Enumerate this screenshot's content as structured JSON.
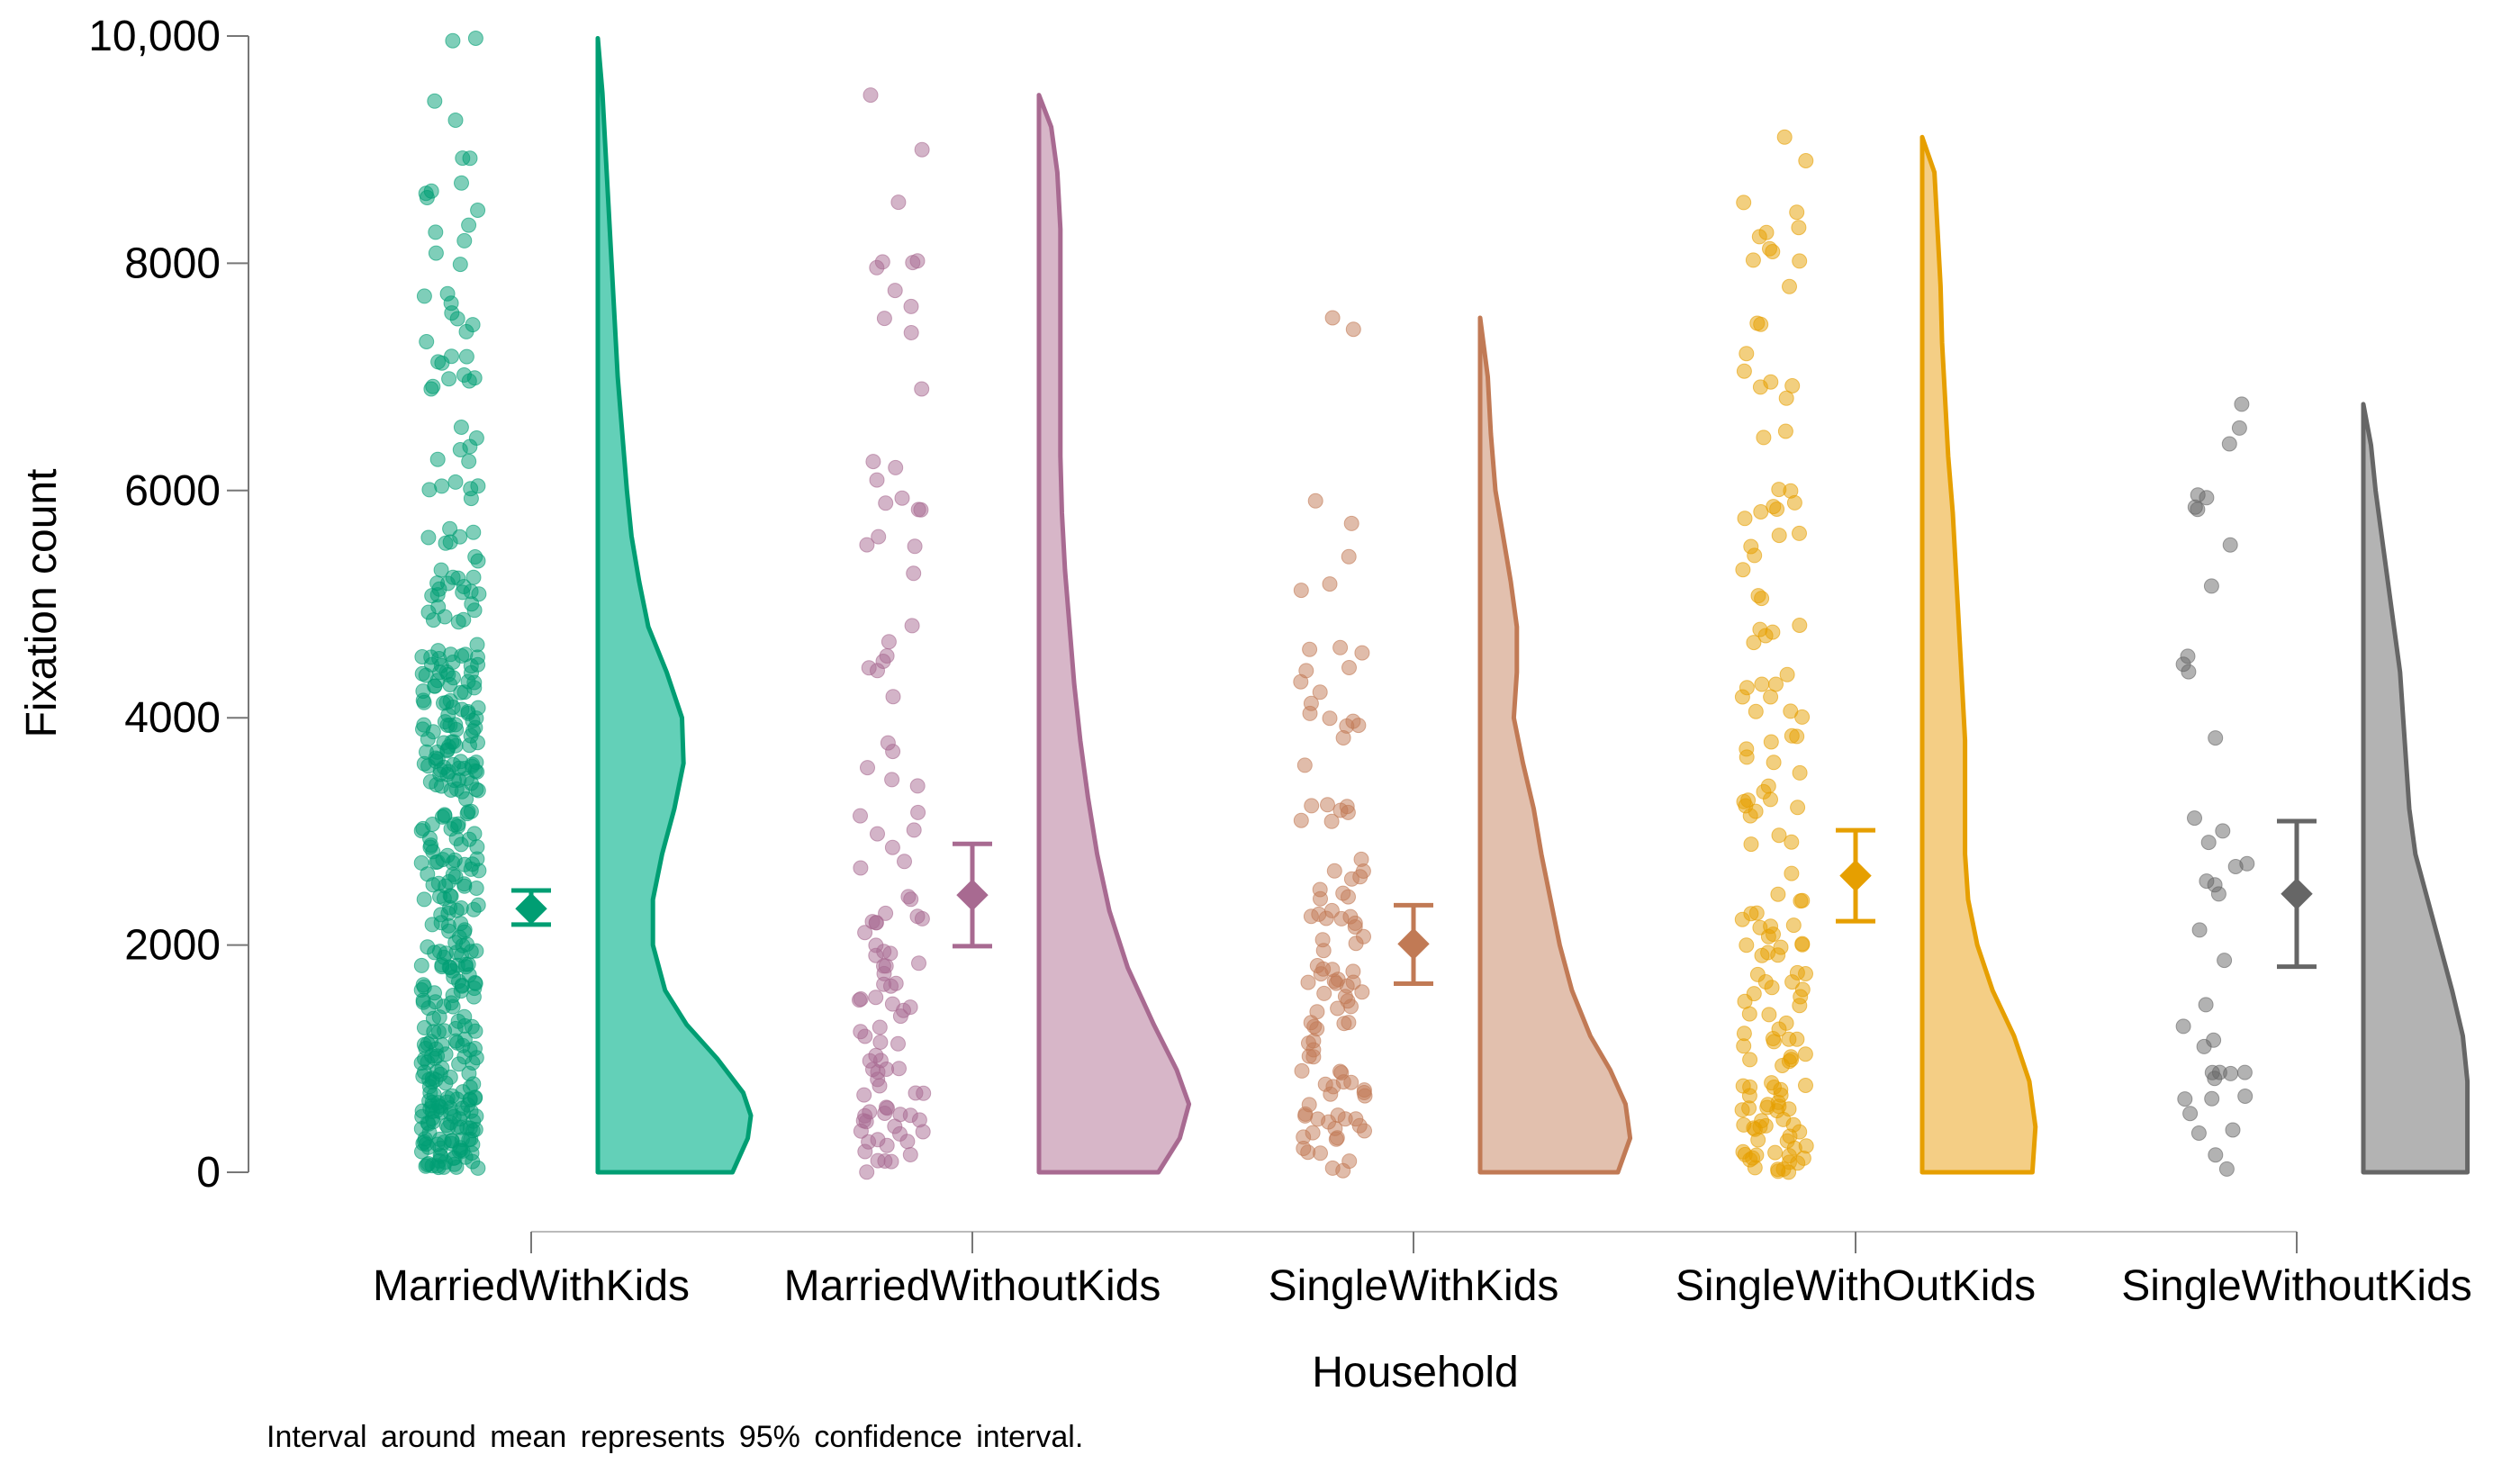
{
  "chart_data": {
    "type": "raincloud",
    "xlabel": "Household",
    "ylabel": "Fixation count",
    "ylim": [
      0,
      10000
    ],
    "yticks": [
      {
        "value": 0,
        "label": "0"
      },
      {
        "value": 2000,
        "label": "2000"
      },
      {
        "value": 4000,
        "label": "4000"
      },
      {
        "value": 6000,
        "label": "6000"
      },
      {
        "value": 8000,
        "label": "8000"
      },
      {
        "value": 10000,
        "label": "10,000"
      }
    ],
    "categories": [
      "MarriedWithKids",
      "MarriedWithoutKids",
      "SingleWithKids",
      "SingleWithOutKids",
      "SingleWithoutKids"
    ],
    "note": "Interval around mean represents 95% confidence interval.",
    "groups": [
      {
        "category": "MarriedWithKids",
        "color": "#009E73",
        "fill": "#63D0B8",
        "mean": 2320,
        "ci": [
          2180,
          2480
        ],
        "max": 9980,
        "n_points": 420,
        "density": [
          [
            0,
            0.88
          ],
          [
            300,
            0.98
          ],
          [
            500,
            1.0
          ],
          [
            700,
            0.95
          ],
          [
            1000,
            0.78
          ],
          [
            1300,
            0.58
          ],
          [
            1600,
            0.44
          ],
          [
            2000,
            0.36
          ],
          [
            2400,
            0.36
          ],
          [
            2800,
            0.42
          ],
          [
            3200,
            0.5
          ],
          [
            3600,
            0.56
          ],
          [
            4000,
            0.55
          ],
          [
            4400,
            0.45
          ],
          [
            4800,
            0.33
          ],
          [
            5200,
            0.27
          ],
          [
            5600,
            0.22
          ],
          [
            6000,
            0.19
          ],
          [
            6500,
            0.16
          ],
          [
            7000,
            0.13
          ],
          [
            7500,
            0.11
          ],
          [
            8000,
            0.09
          ],
          [
            8500,
            0.07
          ],
          [
            9000,
            0.05
          ],
          [
            9500,
            0.03
          ],
          [
            9980,
            0.0
          ]
        ]
      },
      {
        "category": "MarriedWithoutKids",
        "color": "#A86A91",
        "fill": "#D7B6C8",
        "mean": 2440,
        "ci": [
          1990,
          2890
        ],
        "max": 9480,
        "n_points": 110,
        "density": [
          [
            0,
            0.78
          ],
          [
            300,
            0.92
          ],
          [
            600,
            0.98
          ],
          [
            900,
            0.9
          ],
          [
            1300,
            0.75
          ],
          [
            1800,
            0.58
          ],
          [
            2300,
            0.46
          ],
          [
            2800,
            0.38
          ],
          [
            3300,
            0.32
          ],
          [
            3800,
            0.27
          ],
          [
            4300,
            0.23
          ],
          [
            4800,
            0.2
          ],
          [
            5300,
            0.17
          ],
          [
            5800,
            0.15
          ],
          [
            6300,
            0.14
          ],
          [
            6800,
            0.14
          ],
          [
            7300,
            0.14
          ],
          [
            7800,
            0.14
          ],
          [
            8300,
            0.14
          ],
          [
            8800,
            0.12
          ],
          [
            9200,
            0.08
          ],
          [
            9480,
            0.0
          ]
        ]
      },
      {
        "category": "SingleWithKids",
        "color": "#C17A55",
        "fill": "#E2C0AE",
        "mean": 2010,
        "ci": [
          1660,
          2350
        ],
        "max": 7520,
        "n_points": 110,
        "density": [
          [
            0,
            0.9
          ],
          [
            300,
            0.98
          ],
          [
            600,
            0.95
          ],
          [
            900,
            0.85
          ],
          [
            1200,
            0.72
          ],
          [
            1600,
            0.6
          ],
          [
            2000,
            0.52
          ],
          [
            2400,
            0.46
          ],
          [
            2800,
            0.4
          ],
          [
            3200,
            0.35
          ],
          [
            3600,
            0.28
          ],
          [
            4000,
            0.22
          ],
          [
            4400,
            0.24
          ],
          [
            4800,
            0.24
          ],
          [
            5200,
            0.2
          ],
          [
            5600,
            0.15
          ],
          [
            6000,
            0.1
          ],
          [
            6500,
            0.07
          ],
          [
            7000,
            0.05
          ],
          [
            7520,
            0.0
          ]
        ]
      },
      {
        "category": "SingleWithOutKids",
        "color": "#E69F00",
        "fill": "#F4CE85",
        "mean": 2610,
        "ci": [
          2210,
          3010
        ],
        "max": 9110,
        "n_points": 160,
        "density": [
          [
            0,
            0.72
          ],
          [
            400,
            0.74
          ],
          [
            800,
            0.7
          ],
          [
            1200,
            0.6
          ],
          [
            1600,
            0.46
          ],
          [
            2000,
            0.36
          ],
          [
            2400,
            0.3
          ],
          [
            2800,
            0.28
          ],
          [
            3300,
            0.28
          ],
          [
            3800,
            0.28
          ],
          [
            4300,
            0.26
          ],
          [
            4800,
            0.24
          ],
          [
            5300,
            0.22
          ],
          [
            5800,
            0.2
          ],
          [
            6300,
            0.17
          ],
          [
            6800,
            0.15
          ],
          [
            7300,
            0.13
          ],
          [
            7800,
            0.12
          ],
          [
            8300,
            0.1
          ],
          [
            8800,
            0.08
          ],
          [
            9110,
            0.0
          ]
        ]
      },
      {
        "category": "SingleWithoutKids",
        "color": "#666666",
        "fill": "#B3B3B3",
        "mean": 2450,
        "ci": [
          1810,
          3090
        ],
        "max": 6760,
        "n_points": 40,
        "density": [
          [
            0,
            0.68
          ],
          [
            400,
            0.68
          ],
          [
            800,
            0.68
          ],
          [
            1200,
            0.65
          ],
          [
            1600,
            0.58
          ],
          [
            2000,
            0.5
          ],
          [
            2400,
            0.42
          ],
          [
            2800,
            0.34
          ],
          [
            3200,
            0.3
          ],
          [
            3600,
            0.28
          ],
          [
            4000,
            0.26
          ],
          [
            4400,
            0.24
          ],
          [
            4800,
            0.2
          ],
          [
            5200,
            0.16
          ],
          [
            5600,
            0.12
          ],
          [
            6000,
            0.08
          ],
          [
            6400,
            0.05
          ],
          [
            6760,
            0.0
          ]
        ]
      }
    ]
  }
}
